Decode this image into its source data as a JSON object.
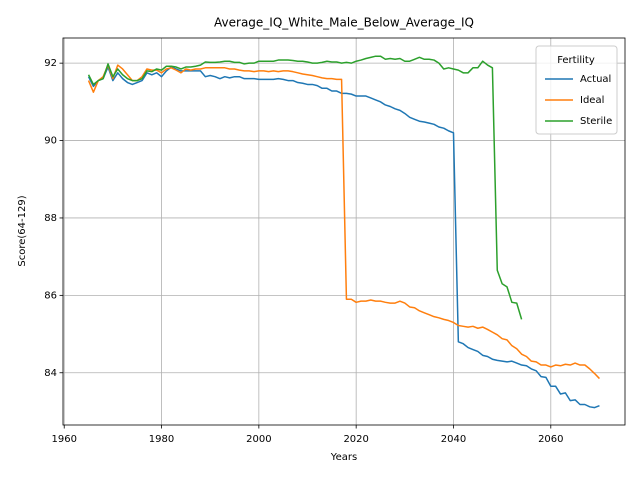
{
  "chart_data": {
    "type": "line",
    "title": "Average_IQ_White_Male_Below_Average_IQ",
    "x_label": "Years",
    "y_label": "Score(64-129)",
    "legend_title": "Fertility",
    "legend_position": "upper right",
    "grid": true,
    "xlim": [
      1959.75,
      2075.25
    ],
    "xticks": [
      1960,
      1980,
      2000,
      2020,
      2040,
      2060
    ],
    "ylim": [
      82.65,
      92.65
    ],
    "yticks": [
      84,
      86,
      88,
      90,
      92
    ],
    "x": [
      1965,
      1966,
      1967,
      1968,
      1969,
      1970,
      1971,
      1972,
      1973,
      1974,
      1975,
      1976,
      1977,
      1978,
      1979,
      1980,
      1981,
      1982,
      1983,
      1984,
      1985,
      1986,
      1987,
      1988,
      1989,
      1990,
      1991,
      1992,
      1993,
      1994,
      1995,
      1996,
      1997,
      1998,
      1999,
      2000,
      2001,
      2002,
      2003,
      2004,
      2005,
      2006,
      2007,
      2008,
      2009,
      2010,
      2011,
      2012,
      2013,
      2014,
      2015,
      2016,
      2017,
      2018,
      2019,
      2020,
      2021,
      2022,
      2023,
      2024,
      2025,
      2026,
      2027,
      2028,
      2029,
      2030,
      2031,
      2032,
      2033,
      2034,
      2035,
      2036,
      2037,
      2038,
      2039,
      2040,
      2041,
      2042,
      2043,
      2044,
      2045,
      2046,
      2047,
      2048,
      2049,
      2050,
      2051,
      2052,
      2053,
      2054,
      2055,
      2056,
      2057,
      2058,
      2059,
      2060,
      2061,
      2062,
      2063,
      2064,
      2065,
      2066,
      2067,
      2068,
      2069,
      2070
    ],
    "series": [
      {
        "name": "Actual",
        "color": "#1f77b4",
        "values": [
          91.65,
          91.4,
          91.55,
          91.6,
          91.9,
          91.55,
          91.75,
          91.6,
          91.5,
          91.45,
          91.5,
          91.55,
          91.75,
          91.7,
          91.75,
          91.65,
          91.8,
          91.9,
          91.85,
          91.8,
          91.8,
          91.8,
          91.8,
          91.8,
          91.65,
          91.68,
          91.65,
          91.6,
          91.65,
          91.62,
          91.65,
          91.65,
          91.6,
          91.6,
          91.6,
          91.58,
          91.58,
          91.58,
          91.58,
          91.6,
          91.58,
          91.55,
          91.55,
          91.5,
          91.48,
          91.45,
          91.45,
          91.42,
          91.35,
          91.35,
          91.28,
          91.28,
          91.22,
          91.22,
          91.2,
          91.15,
          91.15,
          91.15,
          91.1,
          91.05,
          91.0,
          90.92,
          90.88,
          90.82,
          90.78,
          90.7,
          90.6,
          90.55,
          90.5,
          90.48,
          90.45,
          90.42,
          90.35,
          90.32,
          90.25,
          90.2,
          84.8,
          84.75,
          84.65,
          84.6,
          84.55,
          84.45,
          84.42,
          84.35,
          84.32,
          84.3,
          84.28,
          84.3,
          84.25,
          84.2,
          84.18,
          84.1,
          84.05,
          83.9,
          83.88,
          83.65,
          83.65,
          83.45,
          83.48,
          83.28,
          83.3,
          83.18,
          83.18,
          83.12,
          83.1,
          83.15
        ]
      },
      {
        "name": "Ideal",
        "color": "#ff7f0e",
        "values": [
          91.55,
          91.25,
          91.55,
          91.65,
          91.95,
          91.6,
          91.95,
          91.85,
          91.7,
          91.55,
          91.55,
          91.65,
          91.85,
          91.82,
          91.82,
          91.75,
          91.85,
          91.88,
          91.82,
          91.75,
          91.85,
          91.82,
          91.85,
          91.85,
          91.88,
          91.88,
          91.88,
          91.88,
          91.88,
          91.85,
          91.85,
          91.82,
          91.8,
          91.8,
          91.78,
          91.8,
          91.8,
          91.78,
          91.8,
          91.78,
          91.8,
          91.8,
          91.78,
          91.75,
          91.72,
          91.7,
          91.68,
          91.65,
          91.62,
          91.6,
          91.6,
          91.58,
          91.58,
          85.9,
          85.9,
          85.82,
          85.85,
          85.85,
          85.88,
          85.85,
          85.85,
          85.82,
          85.8,
          85.8,
          85.85,
          85.8,
          85.7,
          85.68,
          85.6,
          85.55,
          85.5,
          85.45,
          85.42,
          85.38,
          85.35,
          85.3,
          85.22,
          85.2,
          85.18,
          85.2,
          85.15,
          85.18,
          85.12,
          85.05,
          84.98,
          84.88,
          84.85,
          84.7,
          84.62,
          84.48,
          84.42,
          84.3,
          84.28,
          84.2,
          84.2,
          84.15,
          84.2,
          84.18,
          84.22,
          84.2,
          84.25,
          84.2,
          84.2,
          84.1,
          83.98,
          83.85
        ]
      },
      {
        "name": "Sterile",
        "color": "#2ca02c",
        "values": [
          91.7,
          91.45,
          91.55,
          91.6,
          91.98,
          91.65,
          91.85,
          91.7,
          91.6,
          91.55,
          91.55,
          91.6,
          91.8,
          91.78,
          91.85,
          91.82,
          91.92,
          91.92,
          91.9,
          91.85,
          91.9,
          91.9,
          91.92,
          91.95,
          92.03,
          92.02,
          92.02,
          92.03,
          92.05,
          92.05,
          92.02,
          92.02,
          91.98,
          92.0,
          92.0,
          92.05,
          92.05,
          92.05,
          92.05,
          92.08,
          92.08,
          92.08,
          92.07,
          92.05,
          92.05,
          92.03,
          92.0,
          92.0,
          92.02,
          92.05,
          92.03,
          92.03,
          92.0,
          92.02,
          92.0,
          92.05,
          92.08,
          92.12,
          92.15,
          92.18,
          92.18,
          92.1,
          92.12,
          92.1,
          92.12,
          92.05,
          92.05,
          92.1,
          92.15,
          92.1,
          92.1,
          92.08,
          92.0,
          91.85,
          91.88,
          91.85,
          91.82,
          91.75,
          91.75,
          91.88,
          91.88,
          92.05,
          91.95,
          91.88,
          86.65,
          86.3,
          86.22,
          85.82,
          85.8,
          85.38,
          null,
          null,
          null,
          null,
          null,
          null,
          null,
          null,
          null,
          null,
          null,
          null,
          null,
          null,
          null,
          null
        ]
      }
    ]
  }
}
